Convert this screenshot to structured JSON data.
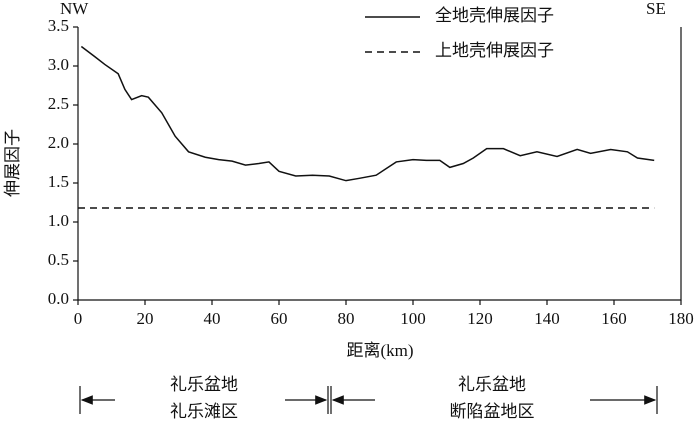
{
  "chart_data": {
    "type": "line",
    "x_label": "距离(km)",
    "y_label": "伸展因子",
    "left_annotation": "NW",
    "right_annotation": "SE",
    "regions": [
      [
        "礼乐盆地",
        "礼乐滩区"
      ],
      [
        "礼乐盆地",
        "断陷盆地区"
      ]
    ],
    "xlim": [
      0,
      180
    ],
    "xticks": [
      0,
      20,
      40,
      60,
      80,
      100,
      120,
      140,
      160,
      180
    ],
    "ylim": [
      0,
      3.5
    ],
    "yticks": [
      {
        "value": 0,
        "label": "0.0"
      },
      {
        "value": 0.5,
        "label": "0.5"
      },
      {
        "value": 1,
        "label": "1.0"
      },
      {
        "value": 1.5,
        "label": "1.5"
      },
      {
        "value": 2,
        "label": "2.0"
      },
      {
        "value": 2.5,
        "label": "2.5"
      },
      {
        "value": 3,
        "label": "3.0"
      },
      {
        "value": 3.5,
        "label": "3.5"
      }
    ],
    "series": [
      {
        "name": "全地壳伸展因子",
        "color": "#111111",
        "dash": "none",
        "x": [
          1,
          5,
          8,
          12,
          14,
          16,
          19,
          21,
          25,
          29,
          33,
          38,
          42,
          46,
          50,
          54,
          57,
          60,
          65,
          70,
          75,
          80,
          84,
          89,
          95,
          100,
          104,
          108,
          111,
          115,
          118,
          122,
          127,
          132,
          137,
          143,
          149,
          153,
          159,
          164,
          167,
          172
        ],
        "values": [
          3.25,
          3.12,
          3.02,
          2.9,
          2.7,
          2.57,
          2.62,
          2.6,
          2.4,
          2.1,
          1.9,
          1.83,
          1.8,
          1.78,
          1.73,
          1.75,
          1.77,
          1.65,
          1.59,
          1.6,
          1.59,
          1.53,
          1.56,
          1.6,
          1.77,
          1.8,
          1.79,
          1.79,
          1.7,
          1.75,
          1.82,
          1.94,
          1.94,
          1.85,
          1.9,
          1.84,
          1.93,
          1.88,
          1.93,
          1.9,
          1.82,
          1.79
        ]
      },
      {
        "name": "上地壳伸展因子",
        "color": "#111111",
        "dash": "7 5",
        "x": [
          0,
          172
        ],
        "values": [
          1.18,
          1.18
        ]
      }
    ]
  }
}
